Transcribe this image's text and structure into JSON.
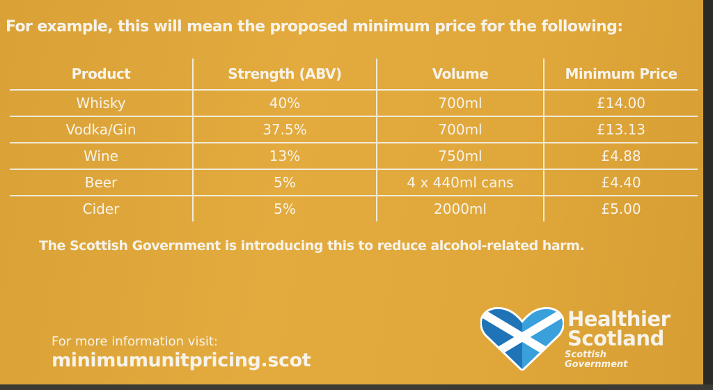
{
  "intro": "For example, this will mean the proposed minimum price for the following:",
  "table": {
    "headers": [
      "Product",
      "Strength (ABV)",
      "Volume",
      "Minimum Price"
    ],
    "rows": [
      [
        "Whisky",
        "40%",
        "700ml",
        "£14.00"
      ],
      [
        "Vodka/Gin",
        "37.5%",
        "700ml",
        "£13.13"
      ],
      [
        "Wine",
        "13%",
        "750ml",
        "£4.88"
      ],
      [
        "Beer",
        "5%",
        "4 x 440ml cans",
        "£4.40"
      ],
      [
        "Cider",
        "5%",
        "2000ml",
        "£5.00"
      ]
    ]
  },
  "statement": "The Scottish Government is introducing this to reduce alcohol-related harm.",
  "footer": {
    "visit_label": "For more information visit:",
    "url": "minimumunitpricing.scot"
  },
  "logo": {
    "icon": "saltire-heart-icon",
    "line1": "Healthier",
    "line2": "Scotland",
    "sub1": "Scottish",
    "sub2": "Government",
    "colors": {
      "heart_dark": "#1f74b8",
      "heart_light": "#3aa0dc",
      "background": "#e2a93c"
    }
  }
}
